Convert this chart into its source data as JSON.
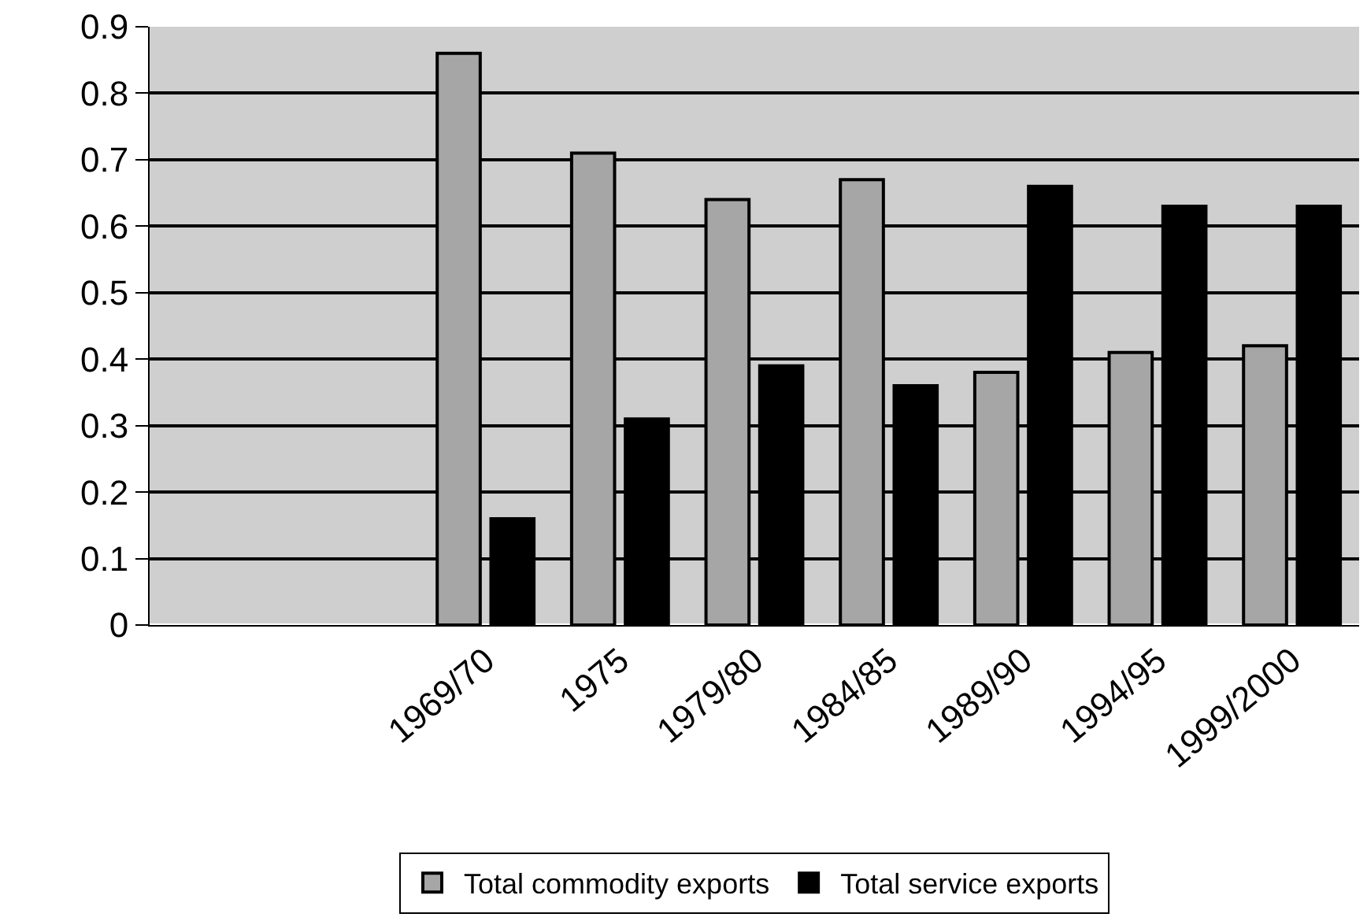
{
  "chart_data": {
    "type": "bar",
    "categories": [
      null,
      null,
      "1969/70",
      "1975",
      "1979/80",
      "1984/85",
      "1989/90",
      "1994/95",
      "1999/2000"
    ],
    "series": [
      {
        "name": "Total commodity exports",
        "color": "#a6a6a6",
        "values": [
          null,
          null,
          0.86,
          0.71,
          0.64,
          0.67,
          0.38,
          0.41,
          0.42
        ]
      },
      {
        "name": "Total service exports",
        "color": "#000000",
        "values": [
          null,
          null,
          0.16,
          0.31,
          0.39,
          0.36,
          0.66,
          0.63,
          0.63
        ]
      }
    ],
    "ylim": [
      0,
      0.9
    ],
    "yticks": [
      0,
      0.1,
      0.2,
      0.3,
      0.4,
      0.5,
      0.6,
      0.7,
      0.8,
      0.9
    ],
    "grid": "y",
    "legend": "bottom"
  }
}
